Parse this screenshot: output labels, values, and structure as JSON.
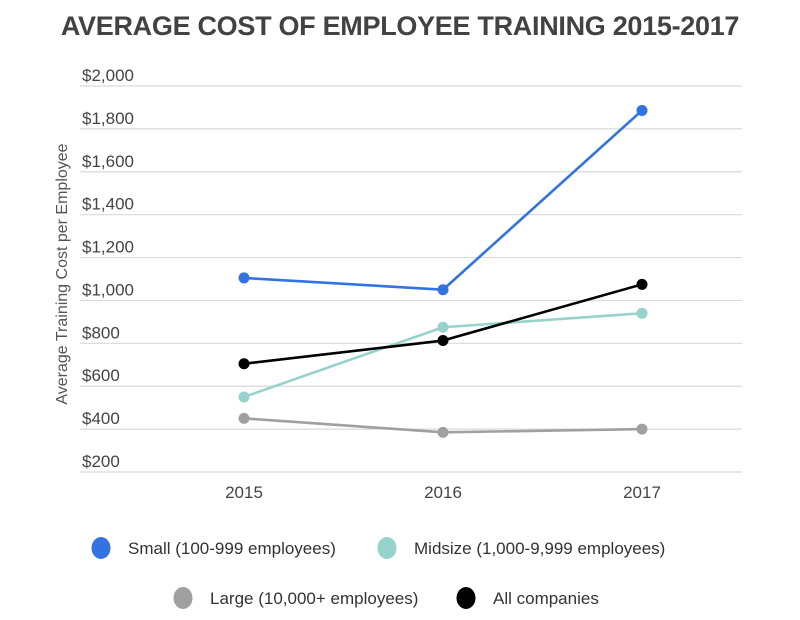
{
  "chart_data": {
    "type": "line",
    "title": "AVERAGE COST OF EMPLOYEE TRAINING 2015-2017",
    "xlabel": "",
    "ylabel": "Average Training Cost per Employee",
    "categories": [
      "2015",
      "2016",
      "2017"
    ],
    "ylim": [
      200,
      2000
    ],
    "yticks": [
      2000,
      1800,
      1600,
      1400,
      1200,
      1000,
      800,
      600,
      400,
      200
    ],
    "ytick_labels": [
      "$2,000",
      "$1,800",
      "$1,600",
      "$1,400",
      "$1,200",
      "$1,000",
      "$800",
      "$600",
      "$400",
      "$200"
    ],
    "grid": true,
    "legend_position": "bottom",
    "series": [
      {
        "name": "Small (100-999 employees)",
        "color": "#3273e0",
        "values": [
          1105,
          1050,
          1886
        ]
      },
      {
        "name": "Midsize (1,000-9,999 employees)",
        "color": "#96d3cc",
        "values": [
          550,
          875,
          940
        ]
      },
      {
        "name": "Large (10,000+ employees)",
        "color": "#a0a0a0",
        "values": [
          450,
          385,
          400
        ]
      },
      {
        "name": "All companies",
        "color": "#000000",
        "values": [
          705,
          813,
          1075
        ]
      }
    ]
  }
}
